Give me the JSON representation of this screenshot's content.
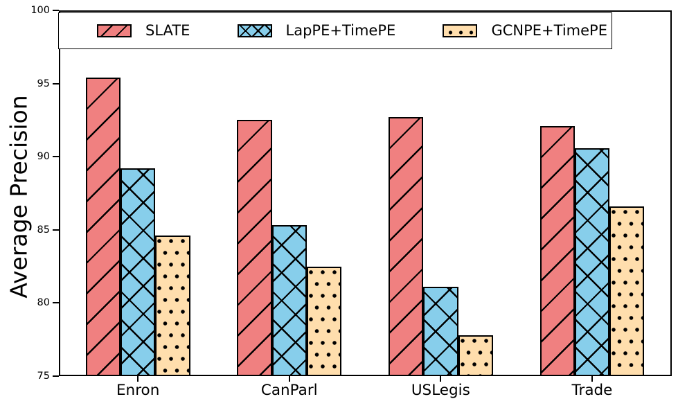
{
  "figure": {
    "background": "#ffffff",
    "edge_color": "#000000"
  },
  "chart_data": {
    "type": "bar",
    "title": "",
    "xlabel": "",
    "ylabel": "Average Precision",
    "categories": [
      "Enron",
      "CanParl",
      "USLegis",
      "Trade"
    ],
    "series": [
      {
        "name": "SLATE",
        "color": "#f08080",
        "hatch": "diagonal",
        "values": [
          95.4,
          92.5,
          92.7,
          92.1
        ]
      },
      {
        "name": "LapPE+TimePE",
        "color": "#87ceeb",
        "hatch": "cross",
        "values": [
          89.2,
          85.3,
          81.1,
          90.6
        ]
      },
      {
        "name": "GCNPE+TimePE",
        "color": "#ffdead",
        "hatch": "dots",
        "values": [
          84.6,
          82.5,
          77.8,
          86.6
        ]
      }
    ],
    "ylim": [
      75,
      100
    ],
    "yticks": [
      75,
      80,
      85,
      90,
      95,
      100
    ],
    "grid": false,
    "legend_position": "top-inside"
  }
}
